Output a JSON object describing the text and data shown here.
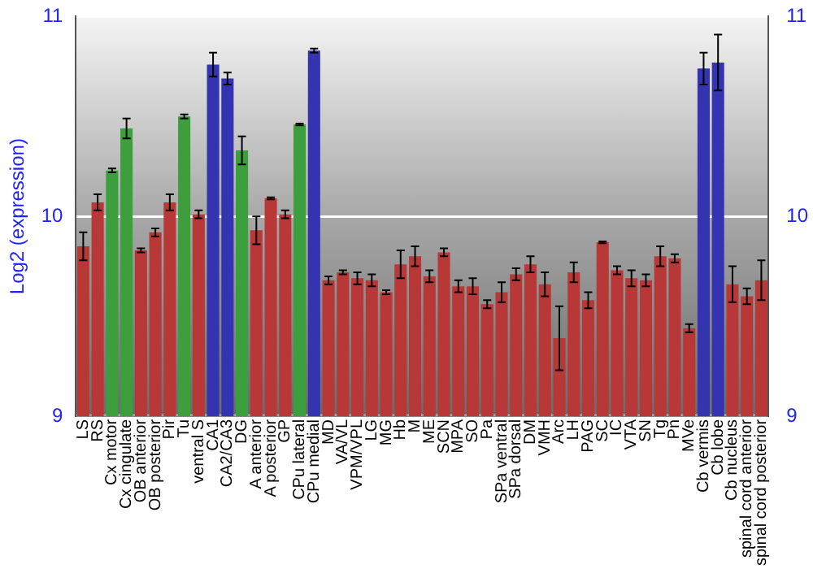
{
  "chart_data": {
    "type": "bar",
    "ylabel": "Log2 (expression)",
    "categories": [
      "LS",
      "RS",
      "Cx motor",
      "Cx cingulate",
      "OB anterior",
      "OB posterior",
      "Pir",
      "Tu",
      "ventral S",
      "CA1",
      "CA2/CA3",
      "DG",
      "A anterior",
      "A posterior",
      "GP",
      "CPu lateral",
      "CPu medial",
      "MD",
      "VA/VL",
      "VPM/VPL",
      "LG",
      "MG",
      "Hb",
      "M",
      "ME",
      "SCN",
      "MPA",
      "SO",
      "Pa",
      "SPa ventral",
      "SPa dorsal",
      "DM",
      "VMH",
      "Arc",
      "LH",
      "PAG",
      "SC",
      "IC",
      "VTA",
      "SN",
      "Tg",
      "Pn",
      "MVe",
      "Cb vermis",
      "Cb lobe",
      "Cb nucleus",
      "spinal cord anterior",
      "spinal cord posterior"
    ],
    "values": [
      9.85,
      10.07,
      10.23,
      10.44,
      9.83,
      9.92,
      10.07,
      10.5,
      10.01,
      10.76,
      10.69,
      10.33,
      9.93,
      10.09,
      10.01,
      10.46,
      10.83,
      9.68,
      9.72,
      9.69,
      9.68,
      9.62,
      9.76,
      9.8,
      9.7,
      9.82,
      9.65,
      9.65,
      9.56,
      9.62,
      9.71,
      9.76,
      9.66,
      9.39,
      9.72,
      9.58,
      9.87,
      9.73,
      9.69,
      9.68,
      9.8,
      9.79,
      9.44,
      10.74,
      10.77,
      9.66,
      9.6,
      9.68
    ],
    "errors": [
      0.07,
      0.04,
      0.01,
      0.05,
      0.01,
      0.02,
      0.04,
      0.01,
      0.02,
      0.06,
      0.03,
      0.07,
      0.07,
      0.005,
      0.02,
      0.005,
      0.01,
      0.02,
      0.01,
      0.03,
      0.03,
      0.01,
      0.07,
      0.05,
      0.03,
      0.02,
      0.03,
      0.04,
      0.02,
      0.05,
      0.03,
      0.04,
      0.06,
      0.16,
      0.05,
      0.04,
      0.005,
      0.02,
      0.04,
      0.03,
      0.05,
      0.02,
      0.02,
      0.08,
      0.14,
      0.09,
      0.04,
      0.1
    ],
    "colors": [
      "#b83838",
      "#b83838",
      "#3c9e3c",
      "#3c9e3c",
      "#b83838",
      "#b83838",
      "#b83838",
      "#3c9e3c",
      "#b83838",
      "#3434b0",
      "#3434b0",
      "#3c9e3c",
      "#b83838",
      "#b83838",
      "#b83838",
      "#3c9e3c",
      "#3434b0",
      "#b83838",
      "#b83838",
      "#b83838",
      "#b83838",
      "#b83838",
      "#b83838",
      "#b83838",
      "#b83838",
      "#b83838",
      "#b83838",
      "#b83838",
      "#b83838",
      "#b83838",
      "#b83838",
      "#b83838",
      "#b83838",
      "#b83838",
      "#b83838",
      "#b83838",
      "#b83838",
      "#b83838",
      "#b83838",
      "#b83838",
      "#b83838",
      "#b83838",
      "#b83838",
      "#3434b0",
      "#3434b0",
      "#b83838",
      "#b83838",
      "#b83838"
    ],
    "ylim": [
      9,
      11
    ],
    "yticks": [
      9,
      10,
      11
    ],
    "y2lim": [
      9,
      11
    ],
    "y2ticks": [
      9,
      10,
      11
    ],
    "grid": "y",
    "legend": false
  }
}
